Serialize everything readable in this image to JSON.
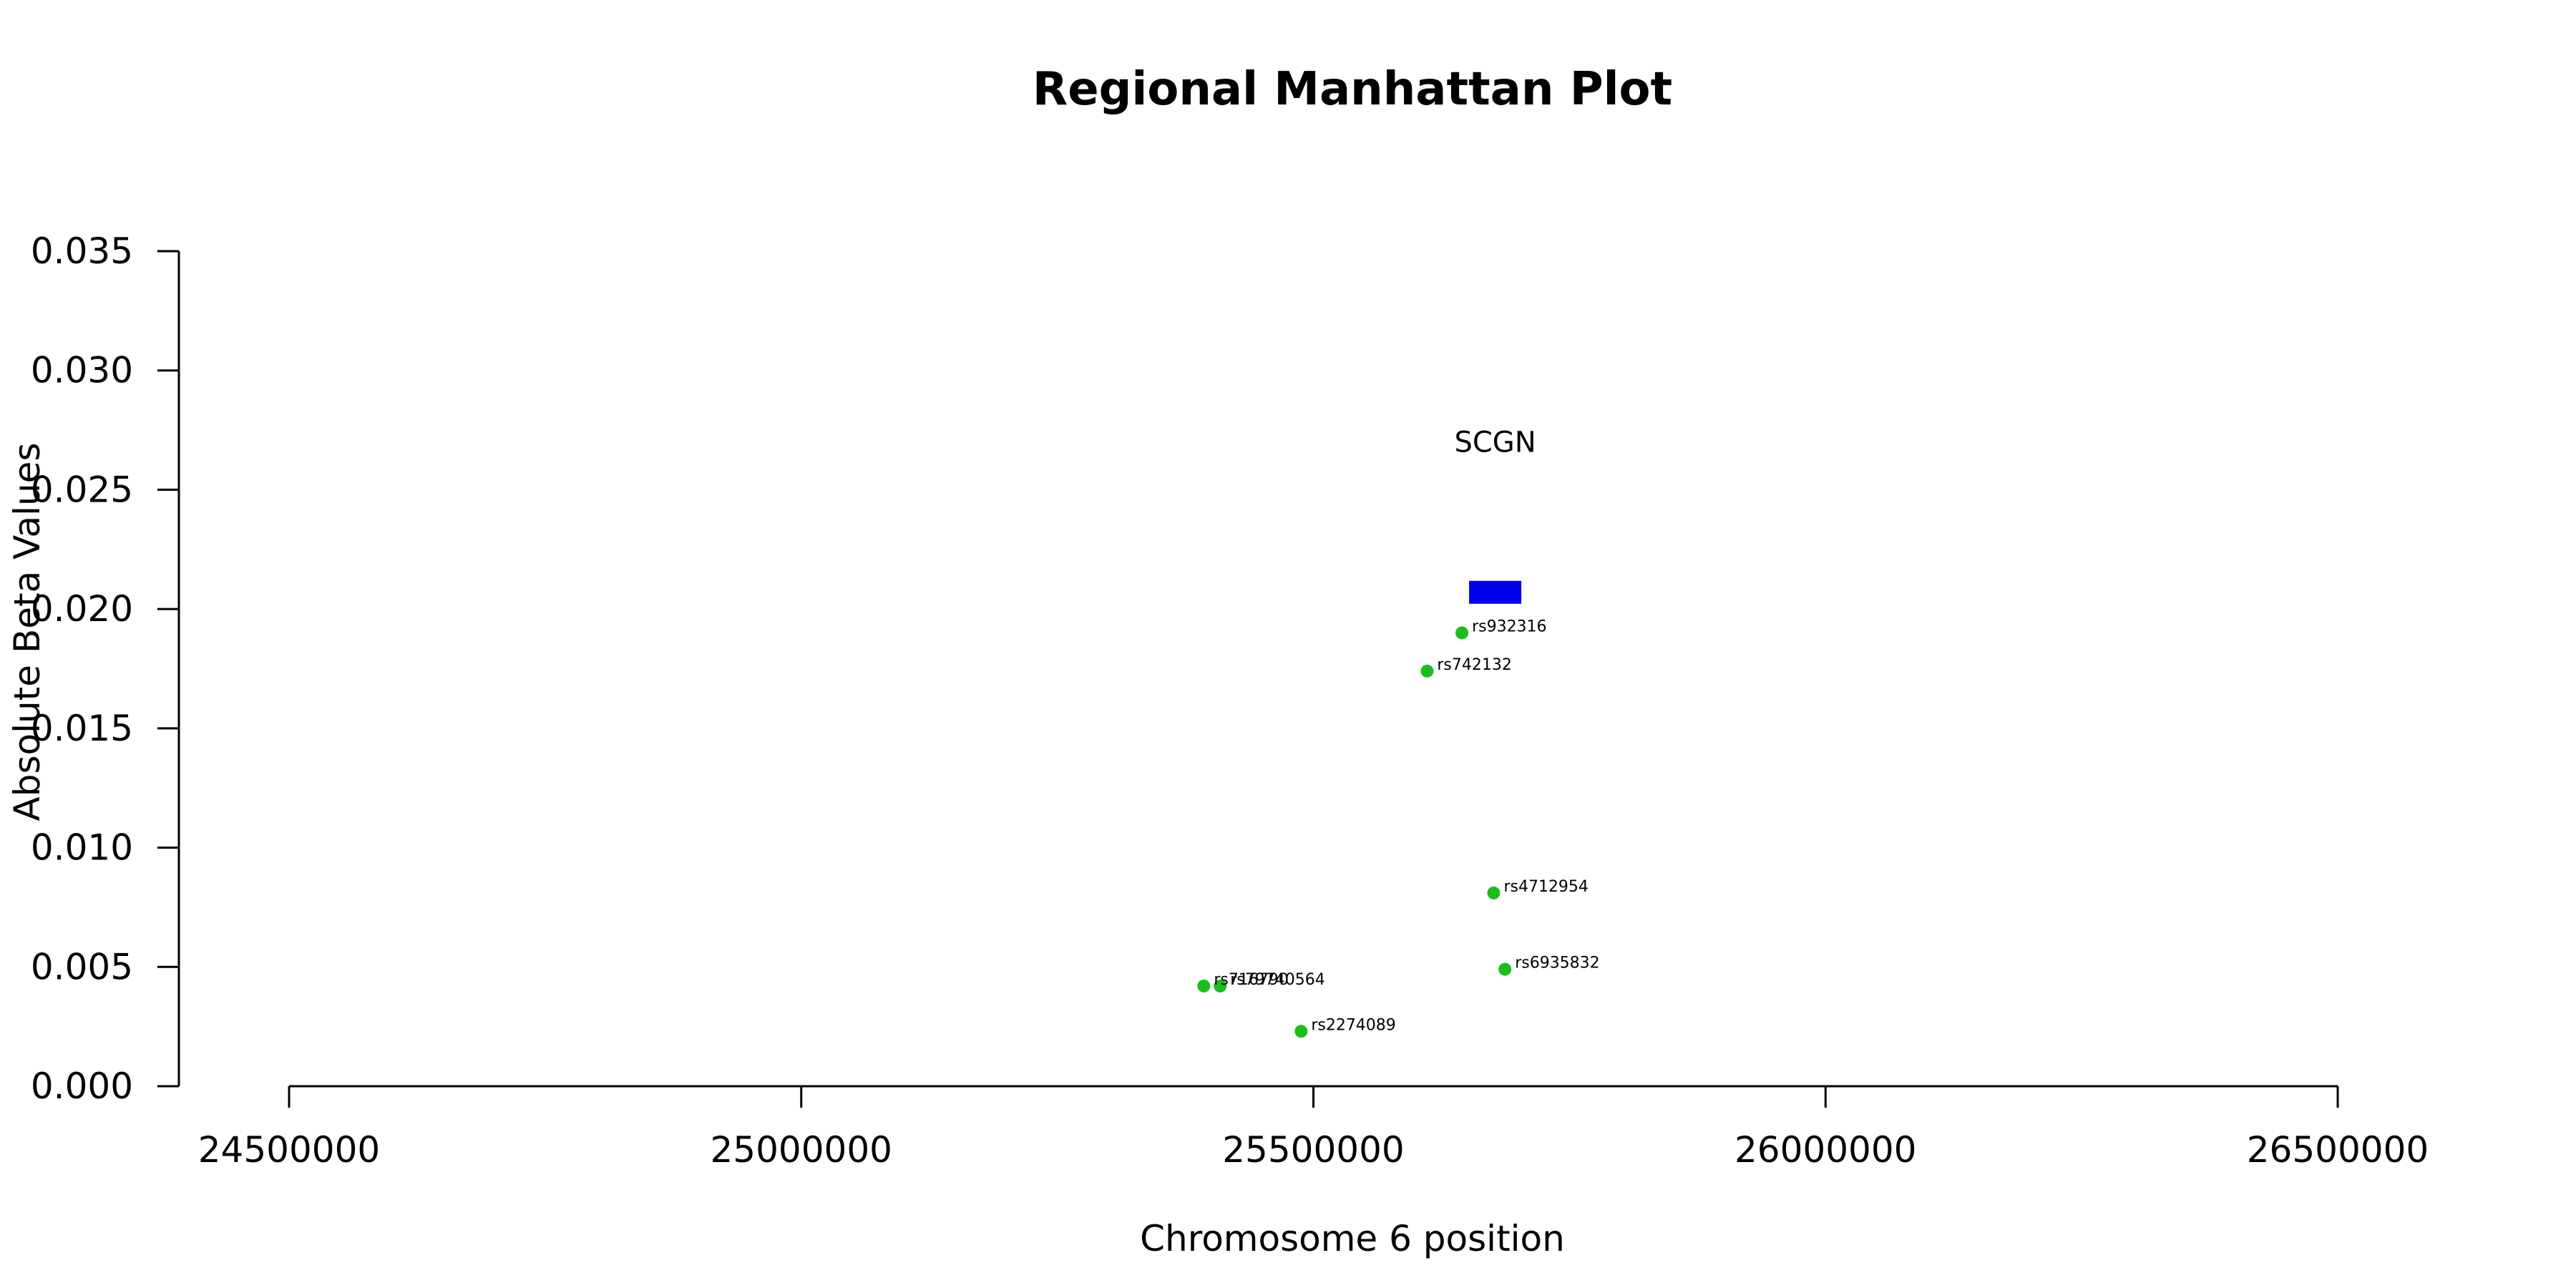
{
  "chart_data": {
    "type": "scatter",
    "title": "Regional Manhattan Plot",
    "xlabel": "Chromosome 6 position",
    "ylabel": "Absolute Beta Values",
    "xlim": [
      24500000,
      26500000
    ],
    "ylim": [
      0,
      0.035
    ],
    "xticks": [
      24500000,
      25000000,
      25500000,
      26000000,
      26500000
    ],
    "yticks": [
      0.0,
      0.005,
      0.01,
      0.015,
      0.02,
      0.025,
      0.03,
      0.035
    ],
    "ytick_labels": [
      "0.000",
      "0.005",
      "0.010",
      "0.015",
      "0.020",
      "0.025",
      "0.030",
      "0.035"
    ],
    "xtick_labels": [
      "24500000",
      "25000000",
      "25500000",
      "26000000",
      "26500000"
    ],
    "grid": false,
    "point_color": "#1bbd1b",
    "gene_color": "#0000ee",
    "points": [
      {
        "label": "rs932316",
        "x": 25645000,
        "y": 0.019
      },
      {
        "label": "rs742132",
        "x": 25611000,
        "y": 0.0174
      },
      {
        "label": "rs4712954",
        "x": 25676000,
        "y": 0.0081
      },
      {
        "label": "rs6935832",
        "x": 25687000,
        "y": 0.0049
      },
      {
        "label": "rs79740564",
        "x": 25409000,
        "y": 0.0042
      },
      {
        "label": "rs716790",
        "x": 25393000,
        "y": 0.0042
      },
      {
        "label": "rs2274089",
        "x": 25488000,
        "y": 0.0023
      }
    ],
    "genes": [
      {
        "name": "SCGN",
        "start": 25652000,
        "end": 25703000,
        "y": 0.0207
      }
    ]
  }
}
